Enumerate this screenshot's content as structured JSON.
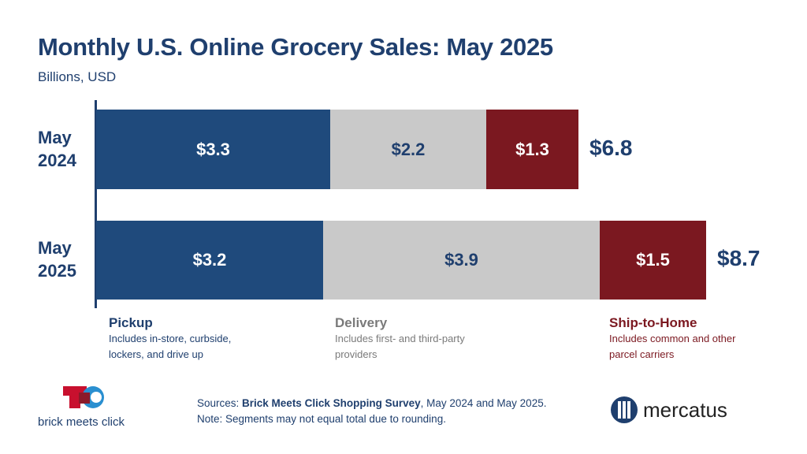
{
  "title": "Monthly U.S. Online Grocery Sales: May 2025",
  "subtitle": "Billions, USD",
  "chart_data": {
    "type": "bar",
    "orientation": "horizontal",
    "stacked": true,
    "title": "Monthly U.S. Online Grocery Sales: May 2025",
    "subtitle": "Billions, USD",
    "categories": [
      "May 2024",
      "May 2025"
    ],
    "category_lines": [
      [
        "May",
        "2024"
      ],
      [
        "May",
        "2025"
      ]
    ],
    "series": [
      {
        "name": "Pickup",
        "values": [
          3.3,
          3.2
        ],
        "labels": [
          "$3.3",
          "$3.2"
        ],
        "color": "#1f4a7c",
        "label_color": "#ffffff"
      },
      {
        "name": "Delivery",
        "values": [
          2.2,
          3.9
        ],
        "labels": [
          "$2.2",
          "$3.9"
        ],
        "color": "#c9c9c9",
        "label_color": "#1f3f6e"
      },
      {
        "name": "Ship-to-Home",
        "values": [
          1.3,
          1.5
        ],
        "labels": [
          "$1.3",
          "$1.5"
        ],
        "color": "#7b1820",
        "label_color": "#ffffff"
      }
    ],
    "totals": [
      "$6.8",
      "$8.7"
    ],
    "grid": false
  },
  "legend": [
    {
      "title": "Pickup",
      "desc": "Includes in-store, curbside, lockers, and drive up",
      "color": "#1f3f6e"
    },
    {
      "title": "Delivery",
      "desc": "Includes first- and third-party providers",
      "color": "#7a7a7a"
    },
    {
      "title": "Ship-to-Home",
      "desc": "Includes common and other parcel carriers",
      "color": "#7b1820"
    }
  ],
  "footer": {
    "sources_prefix": "Sources: ",
    "sources_bold": "Brick Meets Click Shopping Survey",
    "sources_suffix": ", May 2024 and May 2025.",
    "note": "Note: Segments may not equal total due to rounding.",
    "logo_left": "brick meets click",
    "logo_right": "mercatus"
  }
}
